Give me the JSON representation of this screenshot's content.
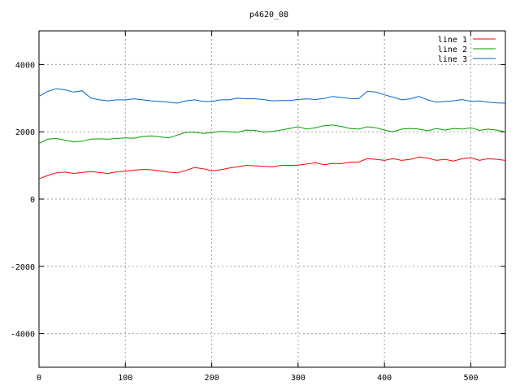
{
  "chart_data": {
    "type": "line",
    "title": "p4620_08",
    "xlabel": "",
    "ylabel": "",
    "xlim": [
      0,
      540
    ],
    "ylim": [
      -5000,
      5000
    ],
    "xticks": [
      0,
      100,
      200,
      300,
      400,
      500
    ],
    "yticks": [
      -4000,
      -2000,
      0,
      2000,
      4000
    ],
    "grid": true,
    "legend_position": "top-right",
    "x": [
      0,
      10,
      20,
      30,
      40,
      50,
      60,
      70,
      80,
      90,
      100,
      110,
      120,
      130,
      140,
      150,
      160,
      170,
      180,
      190,
      200,
      210,
      220,
      230,
      240,
      250,
      260,
      270,
      280,
      290,
      300,
      310,
      320,
      330,
      340,
      350,
      360,
      370,
      380,
      390,
      400,
      410,
      420,
      430,
      440,
      450,
      460,
      470,
      480,
      490,
      500,
      510,
      520,
      530,
      540
    ],
    "series": [
      {
        "name": "line 1",
        "color": "#ff0000",
        "values": [
          600,
          700,
          780,
          800,
          760,
          790,
          820,
          790,
          760,
          810,
          830,
          860,
          880,
          870,
          840,
          800,
          780,
          850,
          940,
          900,
          840,
          870,
          920,
          960,
          1000,
          990,
          970,
          960,
          1000,
          1000,
          1010,
          1040,
          1080,
          1020,
          1060,
          1050,
          1100,
          1100,
          1200,
          1180,
          1150,
          1200,
          1150,
          1180,
          1250,
          1220,
          1150,
          1180,
          1130,
          1200,
          1230,
          1150,
          1200,
          1180,
          1150
        ]
      },
      {
        "name": "line 2",
        "color": "#00a000",
        "values": [
          1650,
          1780,
          1800,
          1750,
          1700,
          1720,
          1780,
          1790,
          1780,
          1800,
          1820,
          1810,
          1860,
          1880,
          1850,
          1820,
          1900,
          1980,
          1990,
          1950,
          1980,
          2010,
          2000,
          1980,
          2050,
          2040,
          1990,
          2010,
          2050,
          2100,
          2150,
          2080,
          2120,
          2180,
          2200,
          2160,
          2100,
          2080,
          2150,
          2120,
          2050,
          2000,
          2080,
          2100,
          2080,
          2030,
          2100,
          2050,
          2100,
          2080,
          2120,
          2040,
          2080,
          2050,
          2000
        ]
      },
      {
        "name": "line 3",
        "color": "#0066cc",
        "values": [
          3050,
          3200,
          3280,
          3250,
          3180,
          3220,
          3000,
          2950,
          2920,
          2950,
          2950,
          2980,
          2950,
          2920,
          2900,
          2880,
          2850,
          2920,
          2950,
          2900,
          2900,
          2950,
          2950,
          3000,
          2980,
          2980,
          2960,
          2920,
          2930,
          2930,
          2960,
          2980,
          2960,
          2990,
          3050,
          3020,
          2990,
          2980,
          3200,
          3180,
          3100,
          3030,
          2950,
          2980,
          3050,
          2950,
          2880,
          2900,
          2920,
          2960,
          2900,
          2920,
          2880,
          2860,
          2850
        ]
      }
    ]
  }
}
